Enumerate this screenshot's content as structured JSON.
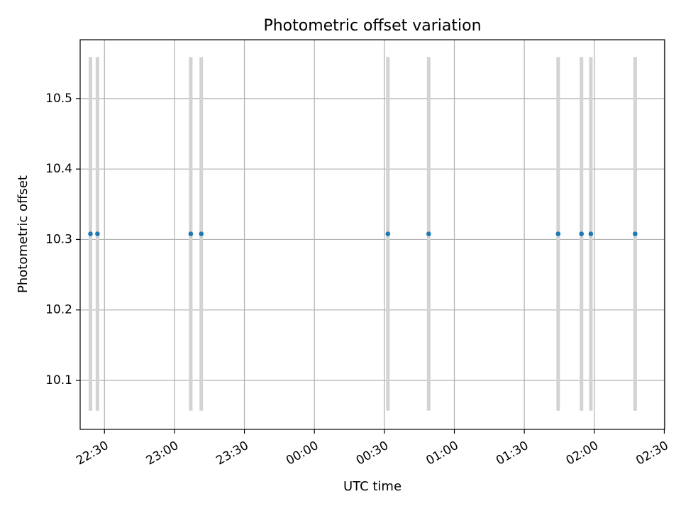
{
  "chart_data": {
    "type": "scatter",
    "title": "Photometric offset variation",
    "xlabel": "UTC time",
    "ylabel": "Photometric offset",
    "grid": true,
    "x_axis_type": "time",
    "xlim": [
      "22:19:35",
      "02:30:10"
    ],
    "ylim": [
      10.0305,
      10.5835
    ],
    "x_ticks": [
      "22:30",
      "23:00",
      "23:30",
      "00:00",
      "00:30",
      "01:00",
      "01:30",
      "02:00",
      "02:30"
    ],
    "y_ticks": [
      "10.1",
      "10.2",
      "10.3",
      "10.4",
      "10.5"
    ],
    "points": [
      {
        "x": "22:24:00",
        "y": 10.308,
        "err_low": 10.057,
        "err_high": 10.559
      },
      {
        "x": "22:27:00",
        "y": 10.308,
        "err_low": 10.057,
        "err_high": 10.559
      },
      {
        "x": "23:07:00",
        "y": 10.308,
        "err_low": 10.057,
        "err_high": 10.559
      },
      {
        "x": "23:11:30",
        "y": 10.308,
        "err_low": 10.057,
        "err_high": 10.559
      },
      {
        "x": "00:31:30",
        "y": 10.308,
        "err_low": 10.057,
        "err_high": 10.559
      },
      {
        "x": "00:49:00",
        "y": 10.308,
        "err_low": 10.057,
        "err_high": 10.559
      },
      {
        "x": "01:44:30",
        "y": 10.308,
        "err_low": 10.057,
        "err_high": 10.559
      },
      {
        "x": "01:54:30",
        "y": 10.308,
        "err_low": 10.057,
        "err_high": 10.559
      },
      {
        "x": "01:58:30",
        "y": 10.308,
        "err_low": 10.057,
        "err_high": 10.559
      },
      {
        "x": "02:17:30",
        "y": 10.308,
        "err_low": 10.057,
        "err_high": 10.559
      }
    ],
    "colors": {
      "point": "#1f77b4",
      "errorbar": "#d3d3d3",
      "grid": "#b0b0b0",
      "axes": "#000000"
    }
  }
}
